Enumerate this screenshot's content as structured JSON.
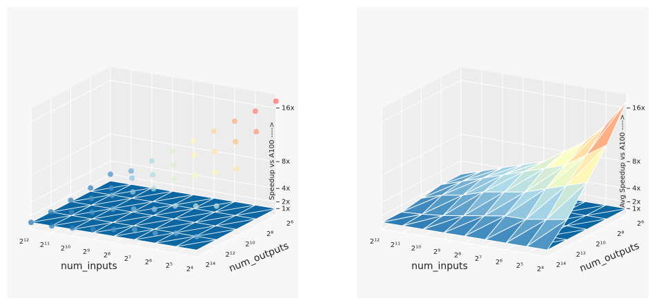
{
  "chart_data": [
    {
      "type": "scatter3d",
      "xlabel": "num_inputs",
      "ylabel": "num_outputs",
      "zlabel": "Speedup vs A100 ---->",
      "log_base": 2,
      "xlim": [
        4096,
        16
      ],
      "ylim": [
        16384,
        64
      ],
      "zlim": [
        0,
        18
      ],
      "xticks": [
        {
          "value": 4096,
          "label": "2¹²"
        },
        {
          "value": 2048,
          "label": "2¹¹"
        },
        {
          "value": 1024,
          "label": "2¹⁰"
        },
        {
          "value": 512,
          "label": "2⁹"
        },
        {
          "value": 256,
          "label": "2⁸"
        },
        {
          "value": 128,
          "label": "2⁷"
        },
        {
          "value": 64,
          "label": "2⁶"
        },
        {
          "value": 32,
          "label": "2⁵"
        },
        {
          "value": 16,
          "label": "2⁴"
        }
      ],
      "yticks": [
        {
          "value": 16384,
          "label": "2¹⁴"
        },
        {
          "value": 4096,
          "label": "2¹²"
        },
        {
          "value": 1024,
          "label": "2¹⁰"
        },
        {
          "value": 256,
          "label": "2⁸"
        },
        {
          "value": 64,
          "label": "2⁶"
        }
      ],
      "zticks": [
        {
          "value": 1,
          "label": "1x"
        },
        {
          "value": 2,
          "label": "2x"
        },
        {
          "value": 4,
          "label": "4x"
        },
        {
          "value": 8,
          "label": "8x"
        },
        {
          "value": 16,
          "label": "16x"
        }
      ],
      "x": [
        16,
        32,
        64,
        128,
        256,
        512,
        1024,
        2048,
        4096,
        16,
        32,
        64,
        128,
        256,
        512,
        1024,
        2048,
        4096,
        16,
        32,
        64,
        128,
        256,
        512,
        1024,
        2048,
        4096,
        16,
        32,
        64,
        128,
        256,
        512,
        1024,
        2048,
        4096,
        16,
        32,
        64,
        128,
        256,
        512,
        1024,
        2048,
        4096
      ],
      "y": [
        64,
        64,
        64,
        64,
        64,
        64,
        64,
        64,
        64,
        256,
        256,
        256,
        256,
        256,
        256,
        256,
        256,
        256,
        1024,
        1024,
        1024,
        1024,
        1024,
        1024,
        1024,
        1024,
        1024,
        4096,
        4096,
        4096,
        4096,
        4096,
        4096,
        4096,
        4096,
        4096,
        16384,
        16384,
        16384,
        16384,
        16384,
        16384,
        16384,
        16384,
        16384
      ],
      "z": [
        17,
        15,
        13,
        11,
        9,
        7,
        5,
        3,
        2,
        14,
        12,
        10,
        9,
        7,
        5,
        4,
        2,
        1.5,
        10,
        9,
        8,
        7,
        5,
        4,
        3,
        2,
        1.2,
        6,
        5.5,
        5,
        4,
        3.5,
        3,
        2,
        1.5,
        1,
        3,
        3,
        2.5,
        2.5,
        2,
        1.5,
        1.2,
        1,
        1
      ]
    },
    {
      "type": "surface3d",
      "xlabel": "num_inputs",
      "ylabel": "num_outputs",
      "zlabel": "Avg Speedup vs A100 ---->",
      "log_base": 2,
      "xlim": [
        4096,
        16
      ],
      "ylim": [
        16384,
        64
      ],
      "zlim": [
        0,
        18
      ],
      "xticks": [
        {
          "value": 4096,
          "label": "2¹²"
        },
        {
          "value": 2048,
          "label": "2¹¹"
        },
        {
          "value": 1024,
          "label": "2¹⁰"
        },
        {
          "value": 512,
          "label": "2⁹"
        },
        {
          "value": 256,
          "label": "2⁸"
        },
        {
          "value": 128,
          "label": "2⁷"
        },
        {
          "value": 64,
          "label": "2⁶"
        },
        {
          "value": 32,
          "label": "2⁵"
        },
        {
          "value": 16,
          "label": "2⁴"
        }
      ],
      "yticks": [
        {
          "value": 16384,
          "label": "2¹⁴"
        },
        {
          "value": 4096,
          "label": "2¹²"
        },
        {
          "value": 1024,
          "label": "2¹⁰"
        },
        {
          "value": 256,
          "label": "2⁸"
        },
        {
          "value": 64,
          "label": "2⁶"
        }
      ],
      "zticks": [
        {
          "value": 1,
          "label": "1x"
        },
        {
          "value": 2,
          "label": "2x"
        },
        {
          "value": 4,
          "label": "4x"
        },
        {
          "value": 8,
          "label": "8x"
        },
        {
          "value": 16,
          "label": "16x"
        }
      ],
      "x": [
        16,
        32,
        64,
        128,
        256,
        512,
        1024,
        2048,
        4096,
        16,
        32,
        64,
        128,
        256,
        512,
        1024,
        2048,
        4096,
        16,
        32,
        64,
        128,
        256,
        512,
        1024,
        2048,
        4096,
        16,
        32,
        64,
        128,
        256,
        512,
        1024,
        2048,
        4096,
        16,
        32,
        64,
        128,
        256,
        512,
        1024,
        2048,
        4096
      ],
      "y": [
        64,
        64,
        64,
        64,
        64,
        64,
        64,
        64,
        64,
        256,
        256,
        256,
        256,
        256,
        256,
        256,
        256,
        256,
        1024,
        1024,
        1024,
        1024,
        1024,
        1024,
        1024,
        1024,
        1024,
        4096,
        4096,
        4096,
        4096,
        4096,
        4096,
        4096,
        4096,
        4096,
        16384,
        16384,
        16384,
        16384,
        16384,
        16384,
        16384,
        16384,
        16384
      ],
      "z": [
        17,
        13,
        10,
        8,
        6,
        5,
        4,
        3,
        2,
        12,
        10,
        8,
        7,
        6,
        5,
        4,
        3,
        2,
        8,
        7,
        6,
        5,
        4.5,
        4,
        3,
        2.5,
        1.5,
        4,
        3.5,
        3,
        3,
        2.5,
        2,
        1.5,
        1.2,
        1,
        1,
        1,
        1,
        1,
        1,
        1,
        1,
        1,
        1
      ]
    }
  ]
}
